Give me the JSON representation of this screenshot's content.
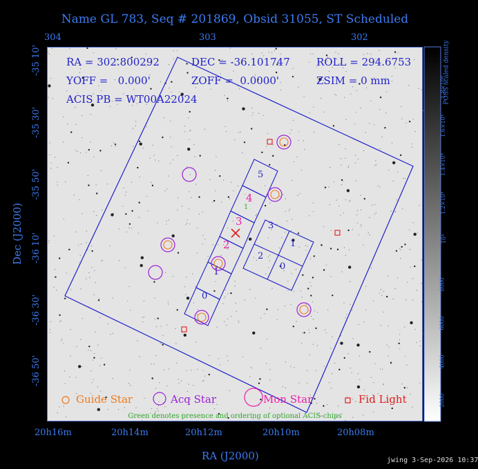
{
  "title": "Name GL 783, Seq # 201869, Obsid 31055, ST Scheduled",
  "top_ticks": [
    "304",
    "303",
    "302"
  ],
  "dec_ticks": [
    "-35 10'",
    "-35 30'",
    "-35 50'",
    "-36 10'",
    "-36 30'",
    "-36 50'"
  ],
  "ra_ticks": [
    "20h16m",
    "20h14m",
    "20h12m",
    "20h10m",
    "20h08m"
  ],
  "x_axis_title": "RA (J2000)",
  "y_axis_title": "Dec (J2000)",
  "info": {
    "line1_ra": "RA = 302.800292",
    "line1_dec": "DEC = -36.101747",
    "line1_roll": "ROLL = 294.6753",
    "line2_yoff": "YOFF =   0.000'",
    "line2_zoff": "ZOFF =  0.0000'",
    "line2_zsim": "ZSIM = 0 mm",
    "line3": "ACIS PB = WT00A22024"
  },
  "chip_labels": [
    "5",
    "4",
    "3",
    "2",
    "1",
    "0",
    "3",
    "1",
    "2",
    "0"
  ],
  "optional_chip_labels": [
    "1"
  ],
  "legend": {
    "guide": "Guide Star",
    "acq": "Acq Star",
    "mon": "Mon Star",
    "fid": "Fid Light",
    "note": "Green denotes presence and ordering of optional ACIS-chips"
  },
  "colorbar": {
    "title": "POSS scaled density",
    "ticks": [
      "2000",
      "4000",
      "6000",
      "8000",
      "10⁴",
      "1.2×10⁴",
      "1.4×10⁴",
      "1.6×10⁴",
      "1.8×10⁴"
    ]
  },
  "footer": "jwing  3-Sep-2026 10:37",
  "colors": {
    "axis": "#3c7cf2",
    "fov": "#1f1fc9",
    "guide": "#f07818",
    "acq": "#9b1fd6",
    "mon": "#ea1ea8",
    "fid": "#e01a1a",
    "optional": "#2ea52e"
  }
}
